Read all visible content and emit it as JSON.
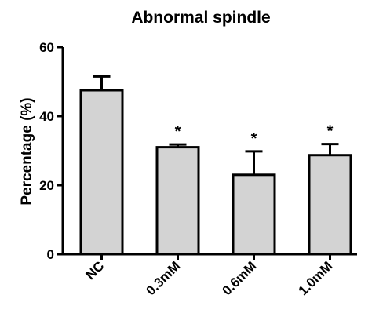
{
  "chart_data": {
    "type": "bar",
    "title": "Abnormal spindle",
    "xlabel": "",
    "ylabel": "Percentage (%)",
    "ylim": [
      0,
      60
    ],
    "yticks": [
      0,
      20,
      40,
      60
    ],
    "grid": false,
    "categories": [
      "NC",
      "0.3mM",
      "0.6mM",
      "1.0mM"
    ],
    "series": [
      {
        "values": [
          47.5,
          31.0,
          23.0,
          28.7
        ],
        "errors": [
          4.0,
          0.8,
          6.8,
          3.2
        ],
        "significance": [
          "",
          "*",
          "*",
          "*"
        ]
      }
    ],
    "colors": {
      "bar_fill": "#d3d3d3",
      "bar_stroke": "#000000",
      "axis": "#000000"
    }
  }
}
